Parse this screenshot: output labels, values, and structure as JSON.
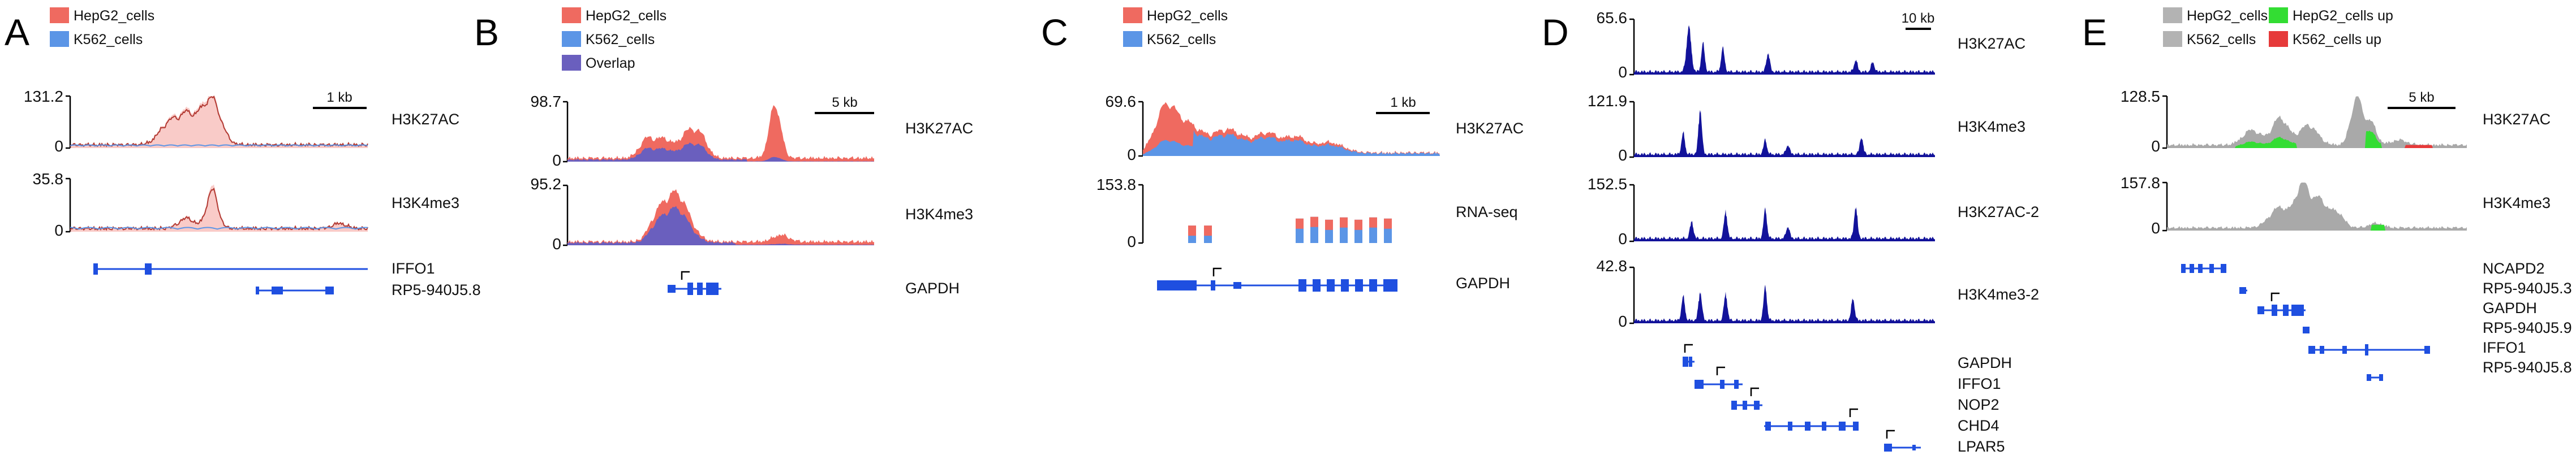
{
  "panels": [
    {
      "letter": "A",
      "legend": [
        {
          "label": "HepG2_cells",
          "color": "#ef6a60"
        },
        {
          "label": "K562_cells",
          "color": "#5b95e6"
        }
      ],
      "scalebar": "1 kb",
      "tracks": [
        {
          "label": "H3K27AC",
          "ymax": "131.2",
          "ymin": "0"
        },
        {
          "label": "H3K4me3",
          "ymax": "35.8",
          "ymin": "0"
        }
      ],
      "genes": [
        "IFFO1",
        "RP5-940J5.8"
      ]
    },
    {
      "letter": "B",
      "legend": [
        {
          "label": "HepG2_cells",
          "color": "#ef6a60"
        },
        {
          "label": "K562_cells",
          "color": "#5b95e6"
        },
        {
          "label": "Overlap",
          "color": "#6a5fbe"
        }
      ],
      "scalebar": "5 kb",
      "tracks": [
        {
          "label": "H3K27AC",
          "ymax": "98.7",
          "ymin": "0"
        },
        {
          "label": "H3K4me3",
          "ymax": "95.2",
          "ymin": "0"
        }
      ],
      "genes": [
        "GAPDH"
      ]
    },
    {
      "letter": "C",
      "legend": [
        {
          "label": "HepG2_cells",
          "color": "#ef6a60"
        },
        {
          "label": "K562_cells",
          "color": "#5b95e6"
        }
      ],
      "scalebar": "1 kb",
      "tracks": [
        {
          "label": "H3K27AC",
          "ymax": "69.6",
          "ymin": "0"
        },
        {
          "label": "RNA-seq",
          "ymax": "153.8",
          "ymin": "0"
        }
      ],
      "genes": [
        "GAPDH"
      ]
    },
    {
      "letter": "D",
      "scalebar": "10 kb",
      "tracks": [
        {
          "label": "H3K27AC",
          "ymax": "65.6",
          "ymin": "0"
        },
        {
          "label": "H3K4me3",
          "ymax": "121.9",
          "ymin": "0"
        },
        {
          "label": "H3K27AC-2",
          "ymax": "152.5",
          "ymin": "0"
        },
        {
          "label": "H3K4me3-2",
          "ymax": "42.8",
          "ymin": "0"
        }
      ],
      "genes": [
        "GAPDH",
        "IFFO1",
        "NOP2",
        "CHD4",
        "LPAR5"
      ]
    },
    {
      "letter": "E",
      "legend": [
        {
          "label": "HepG2_cells",
          "color": "#b3b3b3"
        },
        {
          "label": "K562_cells",
          "color": "#b3b3b3"
        },
        {
          "label": "HepG2_cells up",
          "color": "#33dd33"
        },
        {
          "label": "K562_cells up",
          "color": "#e63a3a"
        }
      ],
      "scalebar": "5 kb",
      "tracks": [
        {
          "label": "H3K27AC",
          "ymax": "128.5",
          "ymin": "0"
        },
        {
          "label": "H3K4me3",
          "ymax": "157.8",
          "ymin": "0"
        }
      ],
      "genes": [
        "NCAPD2",
        "RP5-940J5.3",
        "GAPDH",
        "RP5-940J5.9",
        "IFFO1",
        "RP5-940J5.8"
      ]
    }
  ],
  "colors": {
    "hepg2": "#ef6a60",
    "k562": "#5b95e6",
    "overlap": "#6a5fbe",
    "gene": "#1f4fe0",
    "navy": "#12129a",
    "grey": "#a9a9a9",
    "green": "#33dd33",
    "red": "#e63a3a"
  }
}
